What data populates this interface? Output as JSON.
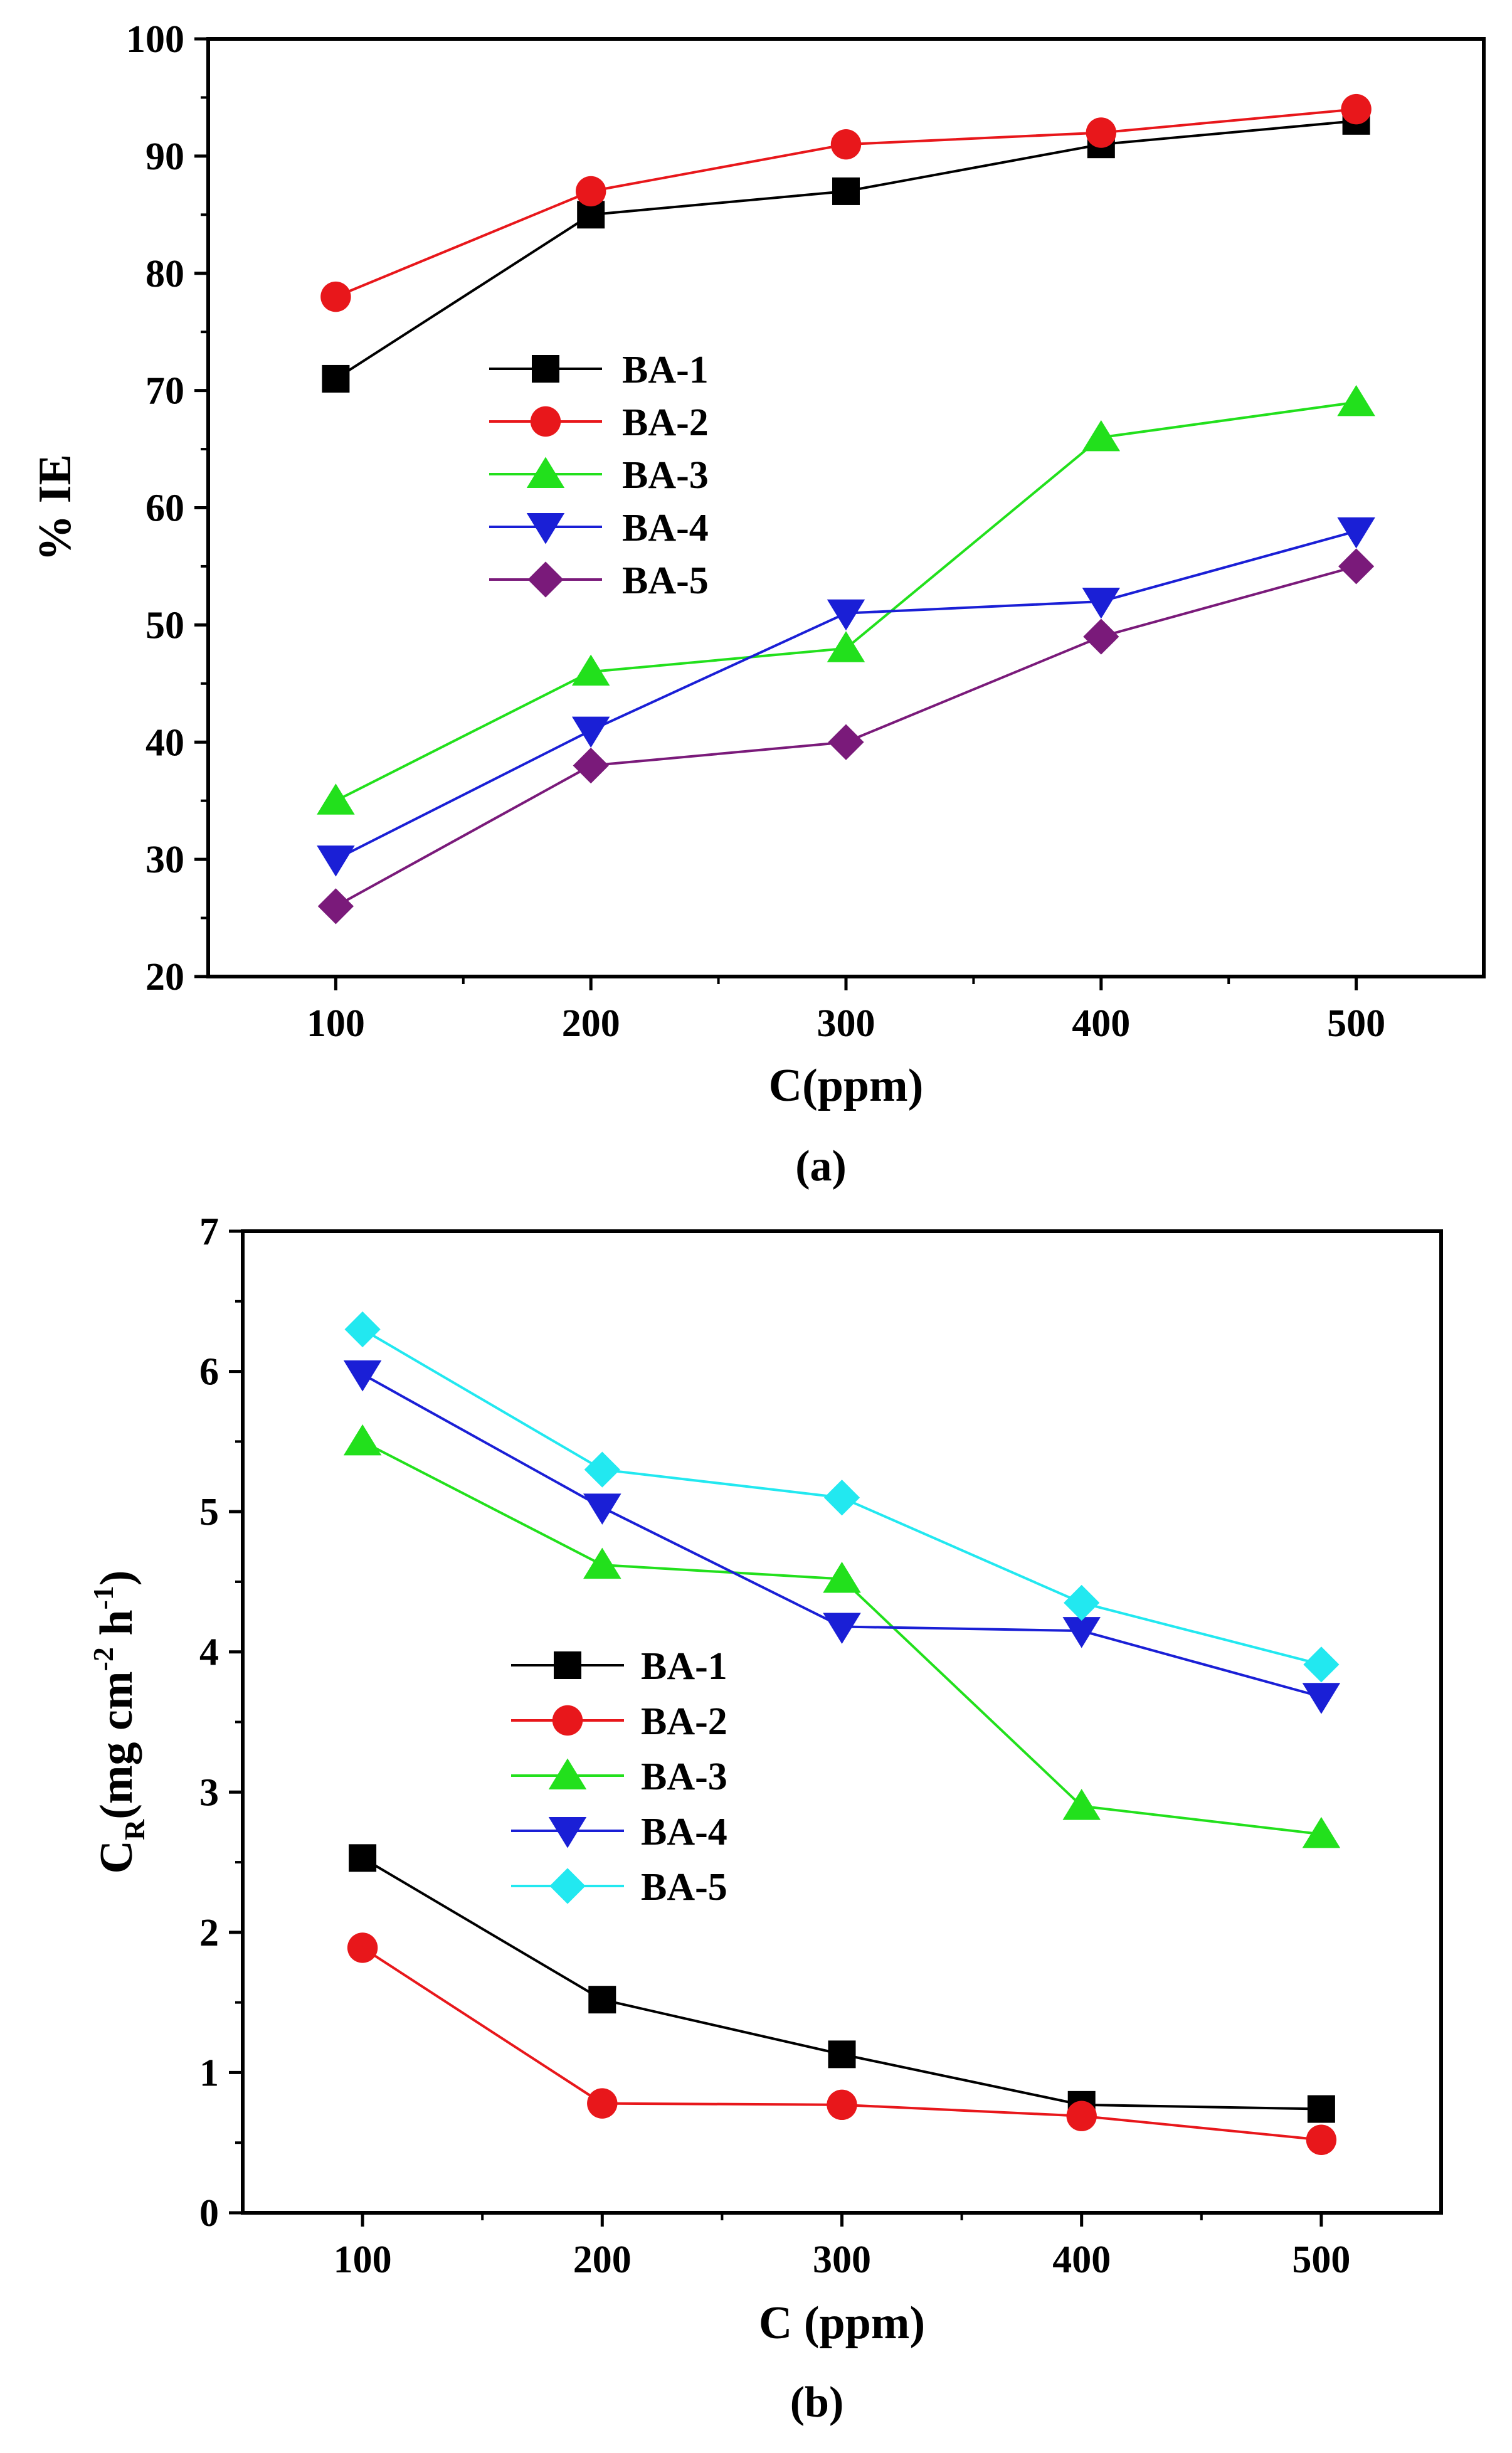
{
  "chart_data": [
    {
      "panel": "a",
      "type": "line",
      "caption": "(a)",
      "xlabel": "C(ppm)",
      "ylabel": "% IE",
      "x": [
        100,
        200,
        300,
        400,
        500
      ],
      "xticks": [
        "100",
        "200",
        "300",
        "400",
        "500"
      ],
      "xlim": [
        50,
        550
      ],
      "ylim": [
        20,
        100
      ],
      "yticks": [
        "20",
        "30",
        "40",
        "50",
        "60",
        "70",
        "80",
        "90",
        "100"
      ],
      "grid": false,
      "legend": "center-left",
      "series": [
        {
          "name": "BA-1",
          "marker": "square",
          "color": "#000000",
          "values": [
            71,
            85,
            87,
            91,
            93
          ]
        },
        {
          "name": "BA-2",
          "marker": "circle",
          "color": "#e8171b",
          "values": [
            78,
            87,
            91,
            92,
            94
          ]
        },
        {
          "name": "BA-3",
          "marker": "triangle-up",
          "color": "#22e01c",
          "values": [
            35,
            46,
            48,
            66,
            69
          ]
        },
        {
          "name": "BA-4",
          "marker": "triangle-down",
          "color": "#1a1fd6",
          "values": [
            30,
            41,
            51,
            52,
            58
          ]
        },
        {
          "name": "BA-5",
          "marker": "diamond",
          "color": "#7a1a7a",
          "values": [
            26,
            38,
            40,
            49,
            55
          ]
        }
      ]
    },
    {
      "panel": "b",
      "type": "line",
      "caption": "(b)",
      "xlabel": "C (ppm)",
      "ylabel": "C_R (mg cm^-2 h^-1)",
      "ylabel_parts": {
        "main": "C",
        "sub": "R",
        "open": "(mg cm",
        "sup1": "-2",
        "mid": " h",
        "sup2": "-1",
        "close": ")"
      },
      "x": [
        100,
        200,
        300,
        400,
        500
      ],
      "xticks": [
        "100",
        "200",
        "300",
        "400",
        "500"
      ],
      "xlim": [
        50,
        550
      ],
      "ylim": [
        0,
        7
      ],
      "yticks": [
        "0",
        "1",
        "2",
        "3",
        "4",
        "5",
        "6",
        "7"
      ],
      "grid": false,
      "legend": "center-left",
      "series": [
        {
          "name": "BA-1",
          "marker": "square",
          "color": "#000000",
          "values": [
            2.53,
            1.52,
            1.13,
            0.77,
            0.74
          ]
        },
        {
          "name": "BA-2",
          "marker": "circle",
          "color": "#e8171b",
          "values": [
            1.89,
            0.78,
            0.77,
            0.69,
            0.52
          ]
        },
        {
          "name": "BA-3",
          "marker": "triangle-up",
          "color": "#22e01c",
          "values": [
            5.5,
            4.62,
            4.52,
            2.9,
            2.7
          ]
        },
        {
          "name": "BA-4",
          "marker": "triangle-down",
          "color": "#1a1fd6",
          "values": [
            5.98,
            5.03,
            4.18,
            4.15,
            3.68
          ]
        },
        {
          "name": "BA-5",
          "marker": "diamond",
          "color": "#22e8f0",
          "values": [
            6.3,
            5.3,
            5.1,
            4.35,
            3.91
          ]
        }
      ]
    }
  ]
}
